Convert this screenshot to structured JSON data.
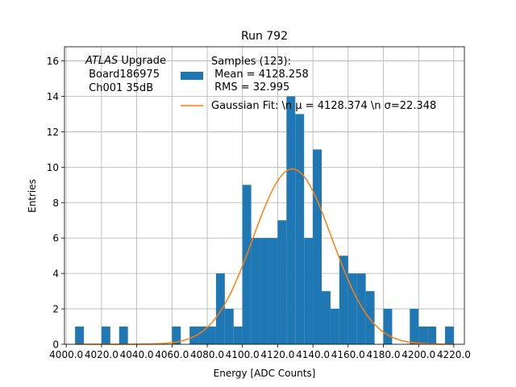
{
  "chart_data": {
    "type": "bar",
    "title": "Run 792",
    "xlabel": "Energy [ADC Counts]",
    "ylabel": "Entries",
    "xlim": [
      3999,
      4226
    ],
    "ylim": [
      0,
      16.8
    ],
    "grid": true,
    "bin_width": 5,
    "xticks": [
      4000,
      4020,
      4040,
      4060,
      4080,
      4100,
      4120,
      4140,
      4160,
      4180,
      4200,
      4220
    ],
    "xtick_labels": [
      "4000.0",
      "4020.0",
      "4040.0",
      "4060.0",
      "4080.0",
      "4100.0",
      "4120.0",
      "4140.0",
      "4160.0",
      "4180.0",
      "4200.0",
      "4220.0"
    ],
    "yticks": [
      0,
      2,
      4,
      6,
      8,
      10,
      12,
      14,
      16
    ],
    "ytick_labels": [
      "0",
      "2",
      "4",
      "6",
      "8",
      "10",
      "12",
      "14",
      "16"
    ],
    "bins_left": [
      4005,
      4020,
      4030,
      4060,
      4070,
      4075,
      4080,
      4085,
      4090,
      4095,
      4100,
      4105,
      4110,
      4115,
      4120,
      4125,
      4130,
      4135,
      4140,
      4145,
      4150,
      4155,
      4160,
      4165,
      4170,
      4180,
      4195,
      4200,
      4205,
      4215
    ],
    "bins_count": [
      1,
      1,
      1,
      1,
      1,
      1,
      1,
      4,
      2,
      1,
      9,
      6,
      6,
      6,
      7,
      14,
      13,
      6,
      11,
      3,
      2,
      5,
      4,
      4,
      3,
      2,
      2,
      1,
      1,
      1
    ],
    "bar_color": "#1f77b4",
    "fit": {
      "type": "gaussian",
      "mu": 4128.374,
      "sigma": 22.348,
      "amplitude": 9.9,
      "color": "#ff7f0e"
    },
    "annotation_lines": [
      "ATLAS Upgrade",
      " Board186975",
      " Ch001 35dB"
    ],
    "annotation_italic_word": "ATLAS",
    "annotation_rest_first_line": " Upgrade",
    "legend": {
      "placement": "top-right",
      "samples_lines": [
        "Samples (123):",
        " Mean = 4128.258",
        " RMS = 32.995"
      ],
      "fit_label": "Gaussian Fit: \\n μ = 4128.374 \\n σ=22.348"
    }
  }
}
